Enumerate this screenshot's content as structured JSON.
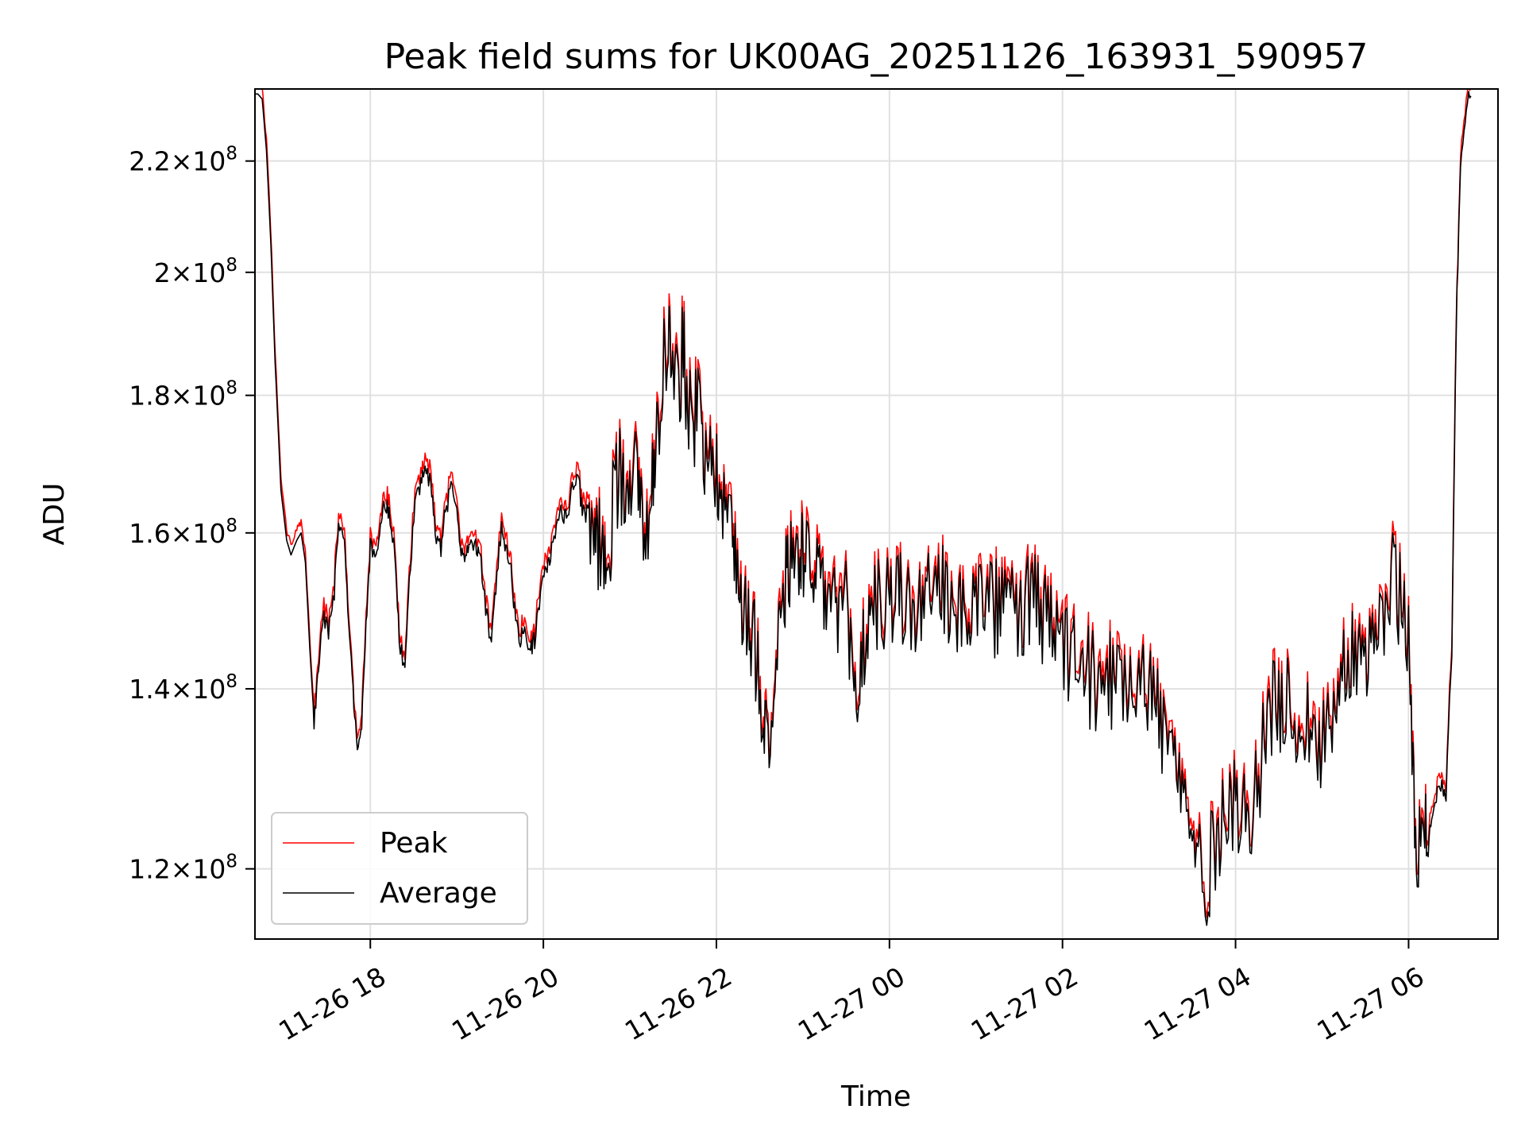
{
  "chart_data": {
    "type": "line",
    "title": "Peak field sums for UK00AG_20251126_163931_590957",
    "xlabel": "Time",
    "ylabel": "ADU",
    "y_scale": "log",
    "grid": true,
    "legend_position": "lower-left",
    "x_range": [
      "2025-11-26 16:40",
      "2025-11-27 07:02"
    ],
    "y_range": [
      113000000,
      234000000
    ],
    "x_ticks": [
      "11-26 18",
      "11-26 20",
      "11-26 22",
      "11-27 00",
      "11-27 02",
      "11-27 04",
      "11-27 06"
    ],
    "x_tick_values": [
      "2025-11-26 18:00",
      "2025-11-26 20:00",
      "2025-11-26 22:00",
      "2025-11-27 00:00",
      "2025-11-27 02:00",
      "2025-11-27 04:00",
      "2025-11-27 06:00"
    ],
    "y_ticks": [
      {
        "value": 120000000,
        "mantissa": "1.2",
        "exp": "8"
      },
      {
        "value": 140000000,
        "mantissa": "1.4",
        "exp": "8"
      },
      {
        "value": 160000000,
        "mantissa": "1.6",
        "exp": "8"
      },
      {
        "value": 180000000,
        "mantissa": "1.8",
        "exp": "8"
      },
      {
        "value": 200000000,
        "mantissa": "2",
        "exp": "8"
      },
      {
        "value": 220000000,
        "mantissa": "2.2",
        "exp": "8"
      }
    ],
    "series": [
      {
        "name": "Peak",
        "color": "#ff0000"
      },
      {
        "name": "Average",
        "color": "#000000"
      }
    ],
    "x": [
      "16:40",
      "16:42",
      "16:45",
      "16:48",
      "16:51",
      "16:54",
      "16:58",
      "17:02",
      "17:05",
      "17:09",
      "17:12",
      "17:15",
      "17:18",
      "17:21",
      "17:24",
      "17:27",
      "17:31",
      "17:35",
      "17:38",
      "17:42",
      "17:45",
      "17:48",
      "17:51",
      "17:54",
      "17:57",
      "18:00",
      "18:04",
      "18:07",
      "18:10",
      "18:13",
      "18:17",
      "18:20",
      "18:24",
      "18:27",
      "18:31",
      "18:35",
      "18:38",
      "18:42",
      "18:45",
      "18:49",
      "18:52",
      "18:56",
      "19:00",
      "19:03",
      "19:06",
      "19:09",
      "19:13",
      "19:16",
      "19:20",
      "19:24",
      "19:27",
      "19:31",
      "19:34",
      "19:37",
      "19:40",
      "19:44",
      "19:47",
      "19:51",
      "19:54",
      "19:58",
      "20:02",
      "20:05",
      "20:09",
      "20:13",
      "20:16",
      "20:20",
      "20:24",
      "20:27",
      "20:31",
      "20:35",
      "20:38",
      "20:42",
      "20:45",
      "20:49",
      "20:53",
      "20:56",
      "21:00",
      "21:04",
      "21:07",
      "21:11",
      "21:15",
      "21:18",
      "21:22",
      "21:26",
      "21:29",
      "21:33",
      "21:37",
      "21:40",
      "21:44",
      "21:48",
      "21:51",
      "21:55",
      "21:59",
      "22:02",
      "22:06",
      "22:10",
      "22:13",
      "22:17",
      "22:21",
      "22:24",
      "22:28",
      "22:32",
      "22:35",
      "22:39",
      "22:43",
      "22:47",
      "22:50",
      "22:54",
      "22:58",
      "23:01",
      "23:05",
      "23:09",
      "23:13",
      "23:17",
      "23:21",
      "23:25",
      "23:29",
      "23:33",
      "23:37",
      "23:41",
      "23:45",
      "23:49",
      "23:53",
      "23:57",
      "00:01",
      "00:06",
      "00:10",
      "00:15",
      "00:20",
      "00:25",
      "00:30",
      "00:35",
      "00:40",
      "00:45",
      "00:50",
      "00:55",
      "01:00",
      "01:05",
      "01:10",
      "01:15",
      "01:20",
      "01:25",
      "01:30",
      "01:35",
      "01:40",
      "01:45",
      "01:50",
      "01:55",
      "02:00",
      "02:05",
      "02:10",
      "02:15",
      "02:20",
      "02:25",
      "02:30",
      "02:35",
      "02:40",
      "02:45",
      "02:50",
      "02:55",
      "03:00",
      "03:05",
      "03:10",
      "03:15",
      "03:20",
      "03:25",
      "03:30",
      "03:35",
      "03:40",
      "03:45",
      "03:50",
      "03:55",
      "04:00",
      "04:05",
      "04:10",
      "04:15",
      "04:20",
      "04:25",
      "04:30",
      "04:35",
      "04:40",
      "04:45",
      "04:50",
      "04:55",
      "05:00",
      "05:05",
      "05:10",
      "05:15",
      "05:20",
      "05:25",
      "05:30",
      "05:35",
      "05:40",
      "05:45",
      "05:50",
      "05:55",
      "06:00",
      "06:03",
      "06:06",
      "06:10",
      "06:13",
      "06:16",
      "06:20",
      "06:23",
      "06:26",
      "06:30",
      "06:33",
      "06:36",
      "06:40",
      "06:44",
      "06:48",
      "06:52",
      "06:56",
      "07:00",
      "07:02"
    ],
    "average": [
      233000000,
      233000000,
      232000000,
      222000000,
      205000000,
      185000000,
      166000000,
      159000000,
      157000000,
      159000000,
      160000000,
      156000000,
      145000000,
      136000000,
      143000000,
      149000000,
      147000000,
      152000000,
      162000000,
      158000000,
      149000000,
      140000000,
      133000000,
      135000000,
      148000000,
      158000000,
      156000000,
      162000000,
      164000000,
      163000000,
      157000000,
      146000000,
      142000000,
      153000000,
      165000000,
      167000000,
      169000000,
      167000000,
      160000000,
      158000000,
      163000000,
      166000000,
      163000000,
      158000000,
      157000000,
      158000000,
      158000000,
      157000000,
      150000000,
      145000000,
      153000000,
      161000000,
      158000000,
      156000000,
      150000000,
      146000000,
      147000000,
      145000000,
      146000000,
      152000000,
      155000000,
      157000000,
      161000000,
      163000000,
      162000000,
      166000000,
      168000000,
      163000000,
      161000000,
      160000000,
      159000000,
      157000000,
      157000000,
      165000000,
      169000000,
      168000000,
      169000000,
      168000000,
      165000000,
      158000000,
      167000000,
      172000000,
      183000000,
      190000000,
      186000000,
      181000000,
      187000000,
      180000000,
      176000000,
      178000000,
      172000000,
      176000000,
      168000000,
      168000000,
      165000000,
      162000000,
      155000000,
      152000000,
      150000000,
      148000000,
      144000000,
      138000000,
      135000000,
      138000000,
      147000000,
      152000000,
      155000000,
      157000000,
      158000000,
      157000000,
      155000000,
      152000000,
      154000000,
      150000000,
      153000000,
      147000000,
      151000000,
      144000000,
      139000000,
      144000000,
      148000000,
      151000000,
      150000000,
      151000000,
      150000000,
      152000000,
      151000000,
      150000000,
      149000000,
      151000000,
      150000000,
      152000000,
      151000000,
      150000000,
      151000000,
      150000000,
      151000000,
      150000000,
      150000000,
      150000000,
      151000000,
      150000000,
      149000000,
      150000000,
      151000000,
      149000000,
      148000000,
      147000000,
      145000000,
      144000000,
      143000000,
      142000000,
      141000000,
      140000000,
      142000000,
      141000000,
      143000000,
      142000000,
      141000000,
      143000000,
      140000000,
      138000000,
      135000000,
      133000000,
      130000000,
      126000000,
      123000000,
      121000000,
      119000000,
      122000000,
      125000000,
      128000000,
      127000000,
      125000000,
      126000000,
      130000000,
      133000000,
      137000000,
      139000000,
      138000000,
      137000000,
      136000000,
      136000000,
      135000000,
      133000000,
      137000000,
      140000000,
      142000000,
      145000000,
      146000000,
      144000000,
      143000000,
      147000000,
      151000000,
      155000000,
      150000000,
      147000000,
      130000000,
      122000000,
      125000000,
      121000000,
      126000000,
      128000000,
      129000000,
      128000000,
      145000000,
      190000000,
      220000000,
      231000000,
      233000000
    ],
    "peak_offset_fraction": 0.006
  }
}
